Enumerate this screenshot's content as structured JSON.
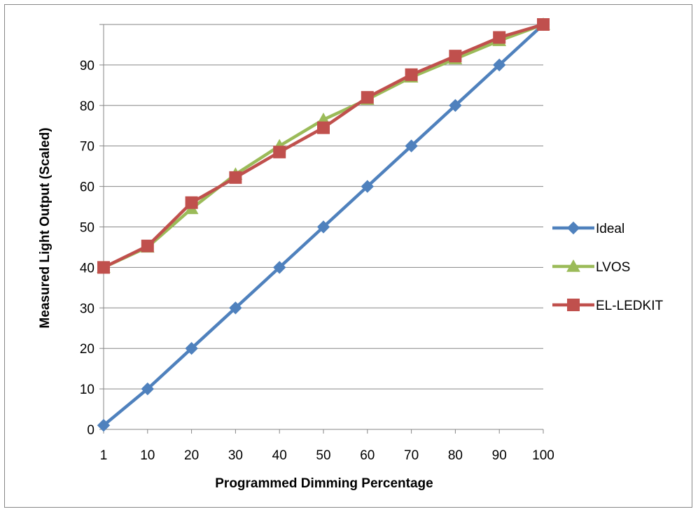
{
  "chart_data": {
    "type": "line",
    "categories": [
      "1",
      "10",
      "20",
      "30",
      "40",
      "50",
      "60",
      "70",
      "80",
      "90",
      "100"
    ],
    "xlabel": "Programmed Dimming Percentage",
    "ylabel": "Measured Light Output (Scaled)",
    "ylim": [
      0,
      100
    ],
    "yticks": [
      0,
      10,
      20,
      30,
      40,
      50,
      60,
      70,
      80,
      90
    ],
    "grid": "horizontal",
    "legend_position": "right",
    "series": [
      {
        "name": "Ideal",
        "color": "#4F81BD",
        "marker": "diamond",
        "values": [
          1,
          10,
          20,
          30,
          40,
          50,
          60,
          70,
          80,
          90,
          100
        ]
      },
      {
        "name": "LVOS",
        "color": "#9BBB59",
        "marker": "triangle",
        "values": [
          40,
          45,
          54.5,
          63,
          70,
          76.5,
          81.5,
          87,
          91.5,
          96,
          100
        ]
      },
      {
        "name": "EL-LEDKIT",
        "color": "#C0504D",
        "marker": "square",
        "values": [
          40,
          45.3,
          56,
          62.2,
          68.5,
          74.5,
          82,
          87.6,
          92.2,
          96.8,
          100
        ]
      }
    ]
  }
}
